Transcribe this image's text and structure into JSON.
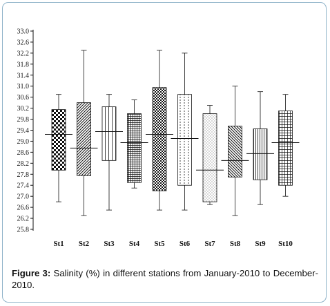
{
  "chart_data": {
    "type": "boxplot",
    "ylim": [
      25.8,
      33.0
    ],
    "y_ticks": [
      "25.8",
      "26.2",
      "26.6",
      "27.0",
      "27.4",
      "27.8",
      "28.2",
      "28.6",
      "29.0",
      "29.4",
      "29.8",
      "30.2",
      "30.6",
      "31.0",
      "31.4",
      "31.8",
      "32.2",
      "32.6",
      "33.0"
    ],
    "categories": [
      "St1",
      "St2",
      "St3",
      "St4",
      "St5",
      "St6",
      "St7",
      "St8",
      "St9",
      "St10"
    ],
    "boxes": [
      {
        "station": "St1",
        "min": 26.8,
        "q1": 27.95,
        "median": 29.25,
        "q3": 30.15,
        "max": 30.7,
        "pattern": "checker"
      },
      {
        "station": "St2",
        "min": 26.3,
        "q1": 27.75,
        "median": 28.75,
        "q3": 30.4,
        "max": 32.3,
        "pattern": "diag-right"
      },
      {
        "station": "St3",
        "min": 26.5,
        "q1": 28.3,
        "median": 29.35,
        "q3": 30.25,
        "max": 30.7,
        "pattern": "vlines-sparse"
      },
      {
        "station": "St4",
        "min": 27.3,
        "q1": 27.5,
        "median": 28.95,
        "q3": 30.0,
        "max": 30.5,
        "pattern": "grid-dense"
      },
      {
        "station": "St5",
        "min": 26.5,
        "q1": 27.2,
        "median": 29.25,
        "q3": 30.95,
        "max": 32.3,
        "pattern": "checker-small"
      },
      {
        "station": "St6",
        "min": 26.5,
        "q1": 27.4,
        "median": 29.1,
        "q3": 30.7,
        "max": 32.2,
        "pattern": "vlines-dotted"
      },
      {
        "station": "St7",
        "min": 26.7,
        "q1": 26.8,
        "median": 27.95,
        "q3": 30.0,
        "max": 30.3,
        "pattern": "dots"
      },
      {
        "station": "St8",
        "min": 26.3,
        "q1": 27.7,
        "median": 28.3,
        "q3": 29.55,
        "max": 31.0,
        "pattern": "diag-left"
      },
      {
        "station": "St9",
        "min": 26.7,
        "q1": 27.6,
        "median": 28.55,
        "q3": 29.45,
        "max": 30.8,
        "pattern": "vlines-dense"
      },
      {
        "station": "St10",
        "min": 27.0,
        "q1": 27.4,
        "median": 28.95,
        "q3": 30.1,
        "max": 30.7,
        "pattern": "grid"
      }
    ]
  },
  "caption": {
    "label": "Figure 3:",
    "text": " Salinity (%) in different stations from January-2010 to December-2010."
  },
  "colors": {
    "ink": "#111111",
    "frame": "#8fb3c9",
    "background": "#ffffff"
  }
}
